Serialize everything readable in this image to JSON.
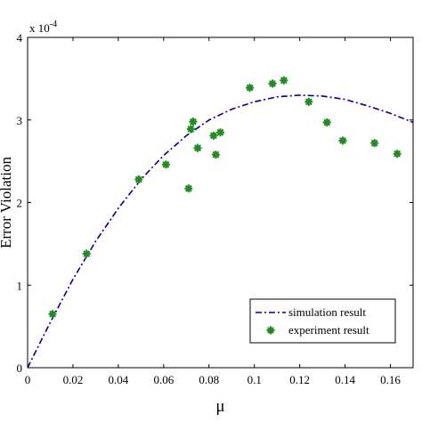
{
  "chart_data": {
    "type": "scatter",
    "title": "",
    "xlabel": "μ",
    "ylabel": "Error Violation",
    "exponent_label": "x 10",
    "exponent_power": "-4",
    "xlim": [
      0,
      0.17
    ],
    "ylim": [
      0,
      4
    ],
    "xticks": [
      0,
      0.02,
      0.04,
      0.06,
      0.08,
      0.1,
      0.12,
      0.14,
      0.16
    ],
    "xtick_labels": [
      "0",
      "0.02",
      "0.04",
      "0.06",
      "0.08",
      "0.1",
      "0.12",
      "0.14",
      "0.16"
    ],
    "yticks": [
      0,
      1,
      2,
      3,
      4
    ],
    "ytick_labels": [
      "0",
      "1",
      "2",
      "3",
      "4"
    ],
    "grid": false,
    "legend_position": "bottom-right",
    "series": [
      {
        "name": "simulation result",
        "style": "dash-dot line",
        "color": "#00008b",
        "x": [
          0,
          0.01,
          0.02,
          0.03,
          0.04,
          0.05,
          0.06,
          0.07,
          0.08,
          0.09,
          0.1,
          0.11,
          0.12,
          0.13,
          0.14,
          0.15,
          0.16,
          0.17
        ],
        "y": [
          0,
          0.55,
          1.07,
          1.53,
          1.93,
          2.28,
          2.57,
          2.81,
          3.0,
          3.13,
          3.22,
          3.28,
          3.3,
          3.29,
          3.25,
          3.17,
          3.08,
          2.97
        ]
      },
      {
        "name": "experiment result",
        "style": "markers",
        "color": "#228b22",
        "x": [
          0.011,
          0.026,
          0.049,
          0.061,
          0.071,
          0.072,
          0.073,
          0.075,
          0.082,
          0.083,
          0.085,
          0.098,
          0.108,
          0.113,
          0.124,
          0.132,
          0.139,
          0.153,
          0.163
        ],
        "y": [
          0.65,
          1.38,
          2.28,
          2.46,
          2.17,
          2.89,
          2.98,
          2.66,
          2.81,
          2.58,
          2.85,
          3.39,
          3.44,
          3.48,
          3.22,
          2.97,
          2.75,
          2.72,
          2.59
        ]
      }
    ]
  }
}
